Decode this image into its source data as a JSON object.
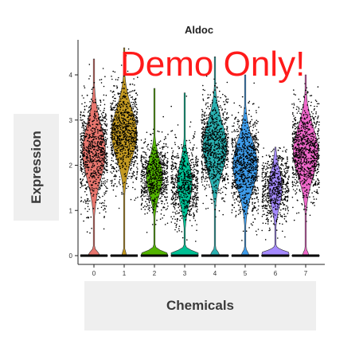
{
  "chart_data": {
    "type": "violin",
    "title": "Aldoc",
    "xlabel": "Chemicals",
    "ylabel": "Expression",
    "categories": [
      "0",
      "1",
      "2",
      "3",
      "4",
      "5",
      "6",
      "7"
    ],
    "y_ticks": [
      "0",
      "1",
      "2",
      "3",
      "4"
    ],
    "ylim": [
      -0.1,
      4.5
    ],
    "grid": false,
    "series": [
      {
        "category": "0",
        "color": "#e8766e",
        "zero_fraction": 0.15,
        "center": 2.3,
        "spread": 0.6,
        "max": 4.35
      },
      {
        "category": "1",
        "color": "#c49a22",
        "zero_fraction": 0.06,
        "center": 2.7,
        "spread": 0.55,
        "max": 4.6
      },
      {
        "category": "2",
        "color": "#53b400",
        "zero_fraction": 0.4,
        "center": 1.75,
        "spread": 0.4,
        "max": 3.7
      },
      {
        "category": "3",
        "color": "#00c094",
        "zero_fraction": 0.45,
        "center": 1.6,
        "spread": 0.45,
        "max": 3.6
      },
      {
        "category": "4",
        "color": "#2ab0b0",
        "zero_fraction": 0.12,
        "center": 2.4,
        "spread": 0.55,
        "max": 4.4
      },
      {
        "category": "5",
        "color": "#3d9be9",
        "zero_fraction": 0.1,
        "center": 2.0,
        "spread": 0.55,
        "max": 4.0
      },
      {
        "category": "6",
        "color": "#a58aff",
        "zero_fraction": 0.5,
        "center": 1.5,
        "spread": 0.4,
        "max": 2.4
      },
      {
        "category": "7",
        "color": "#ef67c9",
        "zero_fraction": 0.08,
        "center": 2.3,
        "spread": 0.55,
        "max": 4.0
      }
    ]
  },
  "watermark": "Demo Only!"
}
